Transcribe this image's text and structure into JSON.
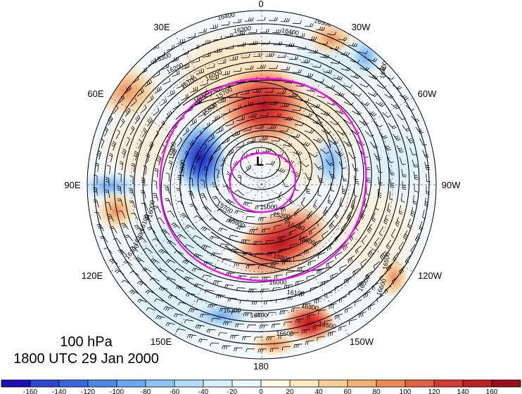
{
  "map": {
    "level": "100 hPa",
    "datetime": "1800 UTC 29 Jan 2000",
    "low_marker": "L",
    "longitude_labels": [
      "0",
      "30W",
      "60W",
      "90W",
      "120W",
      "150W",
      "180",
      "150E",
      "120E",
      "90E",
      "60E",
      "30E"
    ],
    "contour_labels": [
      "16400",
      "16300",
      "16400",
      "16500",
      "15700",
      "16000",
      "15900",
      "15800",
      "15900",
      "16000",
      "16100",
      "16200",
      "16300",
      "16400",
      "16500",
      "16600",
      "15700",
      "15800",
      "16000",
      "16100",
      "16200",
      "16300",
      "15000",
      "15200",
      "15400",
      "15600",
      "15800",
      "16000",
      "16100",
      "16300",
      "16500",
      "16600",
      "16400",
      "16300",
      "16500",
      "16600",
      "16500",
      "16400"
    ],
    "colorbar_ticks": [
      "-160",
      "-140",
      "-120",
      "-100",
      "-80",
      "-60",
      "-40",
      "-20",
      "0",
      "20",
      "40",
      "60",
      "80",
      "100",
      "120",
      "140",
      "160"
    ],
    "colorbar_colors": [
      "#1a0fb4",
      "#2c45d2",
      "#3a66e0",
      "#4d87ea",
      "#6aa6f2",
      "#8ec4f8",
      "#b3dcfb",
      "#d6effd",
      "#eaf7fe",
      "#fffbe4",
      "#fde8c2",
      "#f9cf98",
      "#f3b070",
      "#ec8a52",
      "#e26142",
      "#d43a32",
      "#bc1f26",
      "#9c0d1c"
    ],
    "colors": {
      "contour": "#000000",
      "circle": "#ff00ff",
      "graticule": "#666666"
    }
  }
}
